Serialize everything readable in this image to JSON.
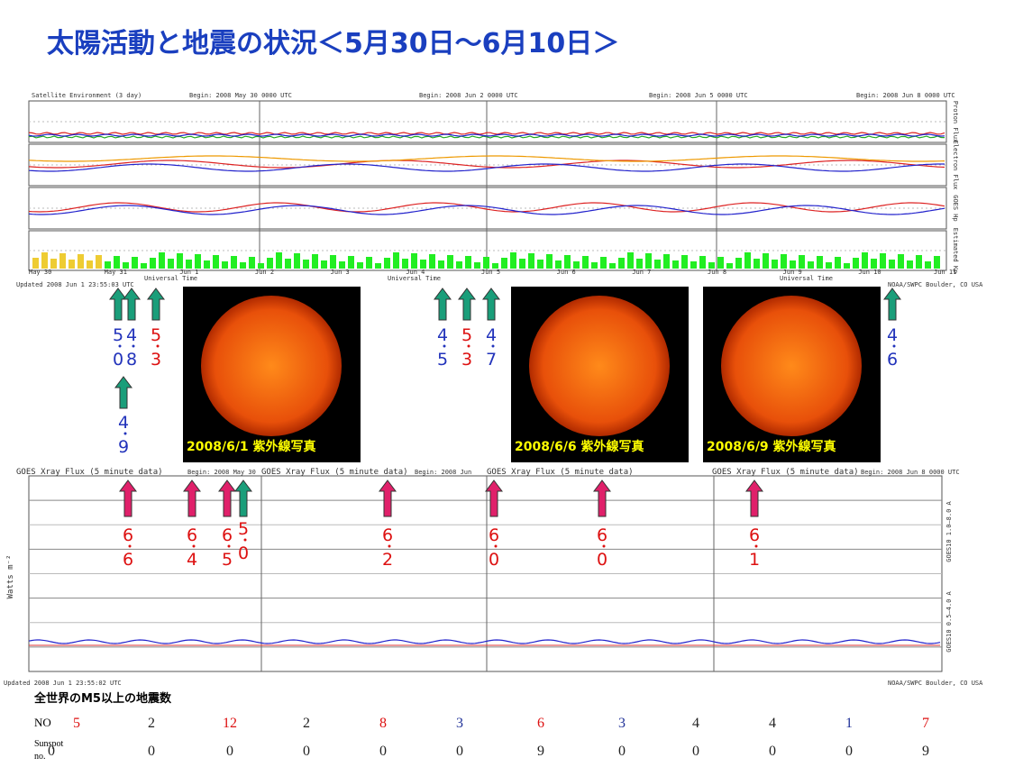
{
  "title": "太陽活動と地震の状況＜5月30日～6月10日＞",
  "top_panels": {
    "headers": [
      "Satellite Environment (3 day)",
      "Begin: 2008 May 30 0000 UTC",
      "Begin: 2008 Jun 2 0000 UTC",
      "Begin: 2008 Jun 5 0000 UTC",
      "Begin: 2008 Jun 8 0000 UTC"
    ],
    "footers": [
      "Updated 2008 Jun 1 23:55:03 UTC",
      "NOAA/SWPC Boulder, CO USA"
    ],
    "side_labels": [
      "Proton Flux",
      "Electron Flux",
      "GOES Hp",
      "Estimated Kp"
    ],
    "dates": [
      "May 30",
      "May 31",
      "Jun 1",
      "Jun 2",
      "Jun 3",
      "Jun 4",
      "Jun 5",
      "Jun 6",
      "Jun 7",
      "Jun 8",
      "Jun 9",
      "Jun 10",
      "Jun 11"
    ],
    "axis_label": "Universal Time"
  },
  "sun_images": [
    "2008/6/1 紫外線写真",
    "2008/6/6 紫外線写真",
    "2008/6/9 紫外線写真"
  ],
  "top_annotations": [
    {
      "text": "5.0",
      "color": "#2233bb"
    },
    {
      "text": "4.8",
      "color": "#2233bb"
    },
    {
      "text": "5.3",
      "color": "#dd1111"
    },
    {
      "text": "4.9",
      "color": "#2233bb"
    },
    {
      "text": "4.5",
      "color": "#2233bb"
    },
    {
      "text": "5.3",
      "color": "#dd1111"
    },
    {
      "text": "4.7",
      "color": "#2233bb"
    },
    {
      "text": "4.6",
      "color": "#2233bb"
    }
  ],
  "xray": {
    "header": "GOES Xray Flux (5 minute data)",
    "begins": [
      "Begin: 2008 May 30",
      "Begin: 2008 Jun",
      "Begin: 2008 Jun 8 0000 UTC"
    ],
    "y_label": "Watts m⁻²",
    "right_labels": [
      "GOES10 1.0–8.0 A",
      "GOES10 0.5–4.0 A"
    ],
    "footers": [
      "Updated 2008 Jun 1 23:55:02 UTC",
      "NOAA/SWPC Boulder, CO USA"
    ]
  },
  "xray_annotations": [
    {
      "text": "6.6",
      "color": "#dd1111"
    },
    {
      "text": "6.4",
      "color": "#dd1111"
    },
    {
      "text": "6.5",
      "color": "#dd1111"
    },
    {
      "text": "5.0",
      "color": "#dd1111"
    },
    {
      "text": "6.2",
      "color": "#dd1111"
    },
    {
      "text": "6.0",
      "color": "#dd1111"
    },
    {
      "text": "6.0",
      "color": "#dd1111"
    },
    {
      "text": "6.1",
      "color": "#dd1111"
    }
  ],
  "table": {
    "caption": "全世界のM5以上の地震数",
    "row_labels": [
      "NO",
      "Sunspot no."
    ],
    "earthquakes": [
      5,
      2,
      12,
      2,
      8,
      3,
      6,
      3,
      4,
      4,
      1,
      7
    ],
    "earthquake_colors": [
      "#dd1111",
      "#222",
      "#dd1111",
      "#222",
      "#dd1111",
      "#223399",
      "#dd1111",
      "#223399",
      "#222",
      "#222",
      "#223399",
      "#dd1111"
    ],
    "sunspots": [
      0,
      0,
      0,
      0,
      0,
      0,
      9,
      0,
      0,
      0,
      0,
      9
    ]
  }
}
